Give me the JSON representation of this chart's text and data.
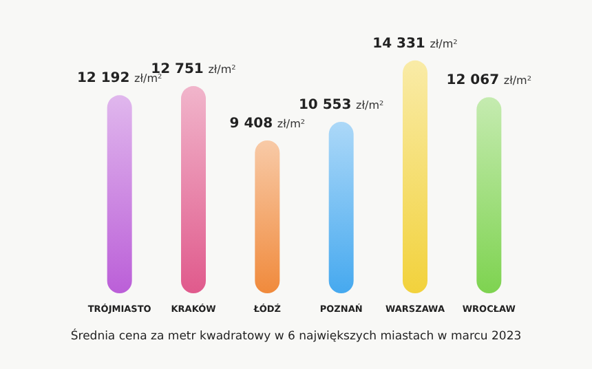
{
  "chart_data": {
    "type": "bar",
    "categories": [
      "TRÓJMIASTO",
      "KRAKÓW",
      "ŁÓDŹ",
      "POZNAŃ",
      "WARSZAWA",
      "WROCŁAW"
    ],
    "values": [
      12192,
      12751,
      9408,
      10553,
      14331,
      12067
    ],
    "value_labels": [
      "12 192 zł/m²",
      "12 751 zł/m²",
      "9 408 zł/m²",
      "10 553 zł/m²",
      "14 331 zł/m²",
      "12 067 zł/m²"
    ],
    "colors": [
      "#bb5fd8",
      "#e05a8c",
      "#f08a3c",
      "#46a9ef",
      "#f2d23c",
      "#7ed350"
    ],
    "annotations": [
      "Średnia cena za metr kwadratowy w 6 największych miastach w marcu 2023"
    ]
  }
}
